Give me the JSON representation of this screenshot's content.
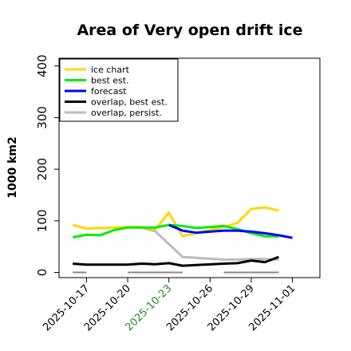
{
  "chart_data": {
    "type": "line",
    "title": "Area of Very open drift ice",
    "ylabel": "1000 km2",
    "xlabel": "",
    "ylim": [
      -10,
      415
    ],
    "xlim": [
      "2025-10-15",
      "2025-11-03"
    ],
    "yticks": [
      0,
      100,
      200,
      300,
      400
    ],
    "xticks": [
      "2025-10-17",
      "2025-10-20",
      "2025-10-23",
      "2025-10-26",
      "2025-10-29",
      "2025-11-01"
    ],
    "highlighted_xtick": "2025-10-23",
    "highlight_color": "#228b22",
    "grid": false,
    "legend_position": "top-left",
    "series": [
      {
        "name": "ice chart",
        "color": "#ffd700",
        "points": [
          [
            "2025-10-16",
            92
          ],
          [
            "2025-10-17",
            85
          ],
          [
            "2025-10-20",
            88
          ],
          [
            "2025-10-21",
            88
          ],
          [
            "2025-10-22",
            83
          ],
          [
            "2025-10-23",
            116
          ],
          [
            "2025-10-24",
            70
          ],
          [
            "2025-10-27",
            88
          ],
          [
            "2025-10-28",
            96
          ],
          [
            "2025-10-29",
            123
          ],
          [
            "2025-10-30",
            126
          ],
          [
            "2025-10-31",
            120
          ]
        ]
      },
      {
        "name": "best est.",
        "color": "#00ee00",
        "points": [
          [
            "2025-10-16",
            68
          ],
          [
            "2025-10-17",
            73
          ],
          [
            "2025-10-18",
            72
          ],
          [
            "2025-10-19",
            82
          ],
          [
            "2025-10-20",
            87
          ],
          [
            "2025-10-21",
            87
          ],
          [
            "2025-10-22",
            87
          ],
          [
            "2025-10-23",
            92
          ],
          [
            "2025-10-24",
            90
          ],
          [
            "2025-10-25",
            86
          ],
          [
            "2025-10-26",
            88
          ],
          [
            "2025-10-27",
            90
          ],
          [
            "2025-10-28",
            84
          ],
          [
            "2025-10-29",
            76
          ],
          [
            "2025-10-30",
            70
          ],
          [
            "2025-10-31",
            70
          ]
        ]
      },
      {
        "name": "forecast",
        "color": "#0000ff",
        "points": [
          [
            "2025-10-23",
            92
          ],
          [
            "2025-10-24",
            81
          ],
          [
            "2025-10-25",
            77
          ],
          [
            "2025-10-26",
            79
          ],
          [
            "2025-10-27",
            81
          ],
          [
            "2025-10-28",
            81
          ],
          [
            "2025-10-29",
            79
          ],
          [
            "2025-10-30",
            76
          ],
          [
            "2025-10-31",
            72
          ],
          [
            "2025-11-01",
            67
          ]
        ]
      },
      {
        "name": "overlap, best est.",
        "color": "#000000",
        "points": [
          [
            "2025-10-16",
            17
          ],
          [
            "2025-10-17",
            15
          ],
          [
            "2025-10-20",
            15
          ],
          [
            "2025-10-21",
            17
          ],
          [
            "2025-10-22",
            16
          ],
          [
            "2025-10-23",
            18
          ],
          [
            "2025-10-24",
            13
          ],
          [
            "2025-10-27",
            17
          ],
          [
            "2025-10-28",
            18
          ],
          [
            "2025-10-29",
            23
          ],
          [
            "2025-10-30",
            20
          ],
          [
            "2025-10-31",
            30
          ]
        ]
      },
      {
        "name": "overlap, persist.",
        "color": "#bbbbbb",
        "points": [
          [
            "2025-10-21",
            87
          ],
          [
            "2025-10-22",
            80
          ],
          [
            "2025-10-23",
            55
          ],
          [
            "2025-10-24",
            30
          ],
          [
            "2025-10-27",
            25
          ],
          [
            "2025-10-28",
            25
          ],
          [
            "2025-10-29",
            26
          ],
          [
            "2025-10-30",
            26
          ],
          [
            "2025-10-31",
            25
          ]
        ]
      }
    ],
    "reference_segments": [
      {
        "color": "#888888",
        "y": 0,
        "x": [
          "2025-10-16",
          "2025-10-17"
        ]
      },
      {
        "color": "#888888",
        "y": 0,
        "x": [
          "2025-10-20",
          "2025-10-24"
        ]
      },
      {
        "color": "#888888",
        "y": 0,
        "x": [
          "2025-10-27",
          "2025-10-31"
        ]
      }
    ]
  }
}
